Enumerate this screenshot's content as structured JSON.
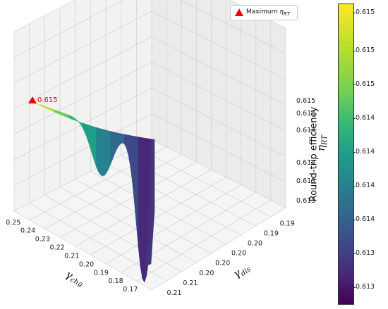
{
  "chart_data": {
    "type": "surface",
    "title": "",
    "xlabel": "γ_chg",
    "ylabel": "γ_dis",
    "zlabel": "η_RT",
    "x_ticks": [
      "0.25",
      "0.24",
      "0.23",
      "0.22",
      "0.21",
      "0.20",
      "0.19",
      "0.18",
      "0.17"
    ],
    "y_ticks": [
      "0.21",
      "0.21",
      "0.20",
      "0.20",
      "0.20",
      "0.20",
      "0.19",
      "0.19"
    ],
    "z_ticks": [
      "0.613",
      "0.613",
      "0.614",
      "0.614",
      "0.614",
      "0.615"
    ],
    "xlim": [
      0.17,
      0.25
    ],
    "ylim": [
      0.185,
      0.215
    ],
    "zlim": [
      0.6128,
      0.6153
    ],
    "colormap": "viridis",
    "maximum": {
      "x": 0.25,
      "y": 0.215,
      "z": 0.615,
      "label": "0.615"
    },
    "legend": {
      "label": "Maximum ",
      "symbol": "η",
      "sub": "RT",
      "placement": "top-right"
    },
    "colorbar": {
      "label": "Round-trip efficiency",
      "ticks": [
        "0.615",
        "0.615",
        "0.615",
        "0.614",
        "0.614",
        "0.614",
        "0.614",
        "0.613",
        "0.613"
      ]
    },
    "colors": {
      "marker": "#ee0000"
    }
  }
}
